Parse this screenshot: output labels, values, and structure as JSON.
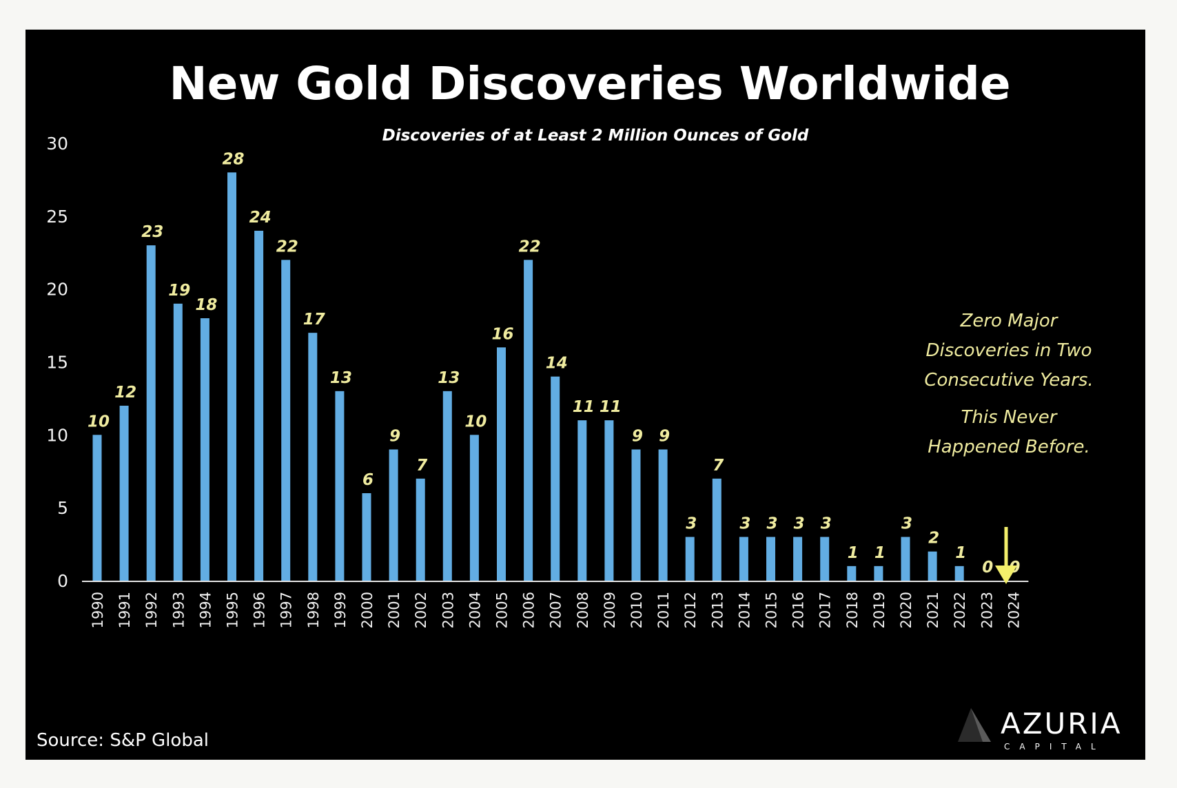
{
  "chart_data": {
    "type": "bar",
    "title": "New Gold Discoveries Worldwide",
    "subtitle": "Discoveries of at Least 2 Million Ounces of Gold",
    "categories": [
      "1990",
      "1991",
      "1992",
      "1993",
      "1994",
      "1995",
      "1996",
      "1997",
      "1998",
      "1999",
      "2000",
      "2001",
      "2002",
      "2003",
      "2004",
      "2005",
      "2006",
      "2007",
      "2008",
      "2009",
      "2010",
      "2011",
      "2012",
      "2013",
      "2014",
      "2015",
      "2016",
      "2017",
      "2018",
      "2019",
      "2020",
      "2021",
      "2022",
      "2023",
      "2024"
    ],
    "values": [
      10,
      12,
      23,
      19,
      18,
      28,
      24,
      22,
      17,
      13,
      6,
      9,
      7,
      13,
      10,
      16,
      22,
      14,
      11,
      11,
      9,
      9,
      3,
      7,
      3,
      3,
      3,
      3,
      1,
      1,
      3,
      2,
      1,
      0,
      0
    ],
    "ylim": [
      0,
      30
    ],
    "yticks": [
      0,
      5,
      10,
      15,
      20,
      25,
      30
    ],
    "xlabel": "",
    "ylabel": "",
    "grid": false,
    "legend": "none",
    "annotations": [
      {
        "lines": [
          "Zero Major",
          "Discoveries in Two",
          "Consecutive Years."
        ]
      },
      {
        "lines": [
          "This Never",
          "Happened Before."
        ]
      }
    ],
    "colors": {
      "bar": "#62ade3",
      "value_label": "#f0eca0",
      "annotation": "#f0eca0",
      "arrow": "#f3ef6b",
      "axis": "#e6e6e6",
      "background": "#000000"
    }
  },
  "source": "Source: S&P Global",
  "brand": {
    "name": "AZURIA",
    "subtitle": "CAPITAL",
    "logo_icon": "pyramid-logo-icon"
  }
}
